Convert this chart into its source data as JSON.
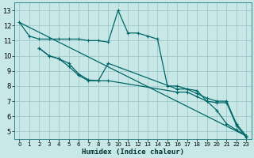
{
  "xlabel": "Humidex (Indice chaleur)",
  "bg_color": "#c8e8e8",
  "grid_color": "#a0c8c8",
  "line_color": "#006666",
  "xlim": [
    -0.5,
    23.5
  ],
  "ylim": [
    4.5,
    13.5
  ],
  "xticks": [
    0,
    1,
    2,
    3,
    4,
    5,
    6,
    7,
    8,
    9,
    10,
    11,
    12,
    13,
    14,
    15,
    16,
    17,
    18,
    19,
    20,
    21,
    22,
    23
  ],
  "yticks": [
    5,
    6,
    7,
    8,
    9,
    10,
    11,
    12,
    13
  ],
  "series": [
    {
      "x": [
        0,
        1,
        2,
        3,
        4,
        5,
        6,
        7,
        8,
        9,
        10,
        11,
        12,
        13,
        14,
        15,
        16,
        17,
        18,
        19,
        20,
        21,
        22,
        23
      ],
      "y": [
        12.2,
        11.3,
        11.1,
        11.1,
        11.1,
        11.1,
        11.1,
        11.0,
        11.0,
        10.9,
        13.0,
        11.5,
        11.5,
        11.3,
        11.1,
        8.0,
        8.0,
        7.8,
        7.7,
        7.0,
        6.4,
        5.5,
        5.1,
        4.7
      ],
      "marker": true
    },
    {
      "x": [
        2,
        3,
        4,
        5,
        6,
        7,
        8,
        9,
        16,
        17,
        18,
        19,
        20,
        21,
        22,
        23
      ],
      "y": [
        10.5,
        10.0,
        9.8,
        9.5,
        8.8,
        8.4,
        8.35,
        9.5,
        7.8,
        7.8,
        7.5,
        7.2,
        7.0,
        7.0,
        5.5,
        4.7
      ],
      "marker": true
    },
    {
      "x": [
        2,
        3,
        4,
        5,
        6,
        7,
        8,
        9,
        16,
        17,
        18,
        19,
        20,
        21,
        22,
        23
      ],
      "y": [
        10.5,
        10.0,
        9.8,
        9.3,
        8.7,
        8.35,
        8.35,
        8.35,
        7.6,
        7.6,
        7.3,
        7.0,
        6.9,
        6.9,
        5.4,
        4.6
      ],
      "marker": true
    },
    {
      "x": [
        0,
        23
      ],
      "y": [
        12.2,
        4.7
      ],
      "marker": false
    }
  ]
}
